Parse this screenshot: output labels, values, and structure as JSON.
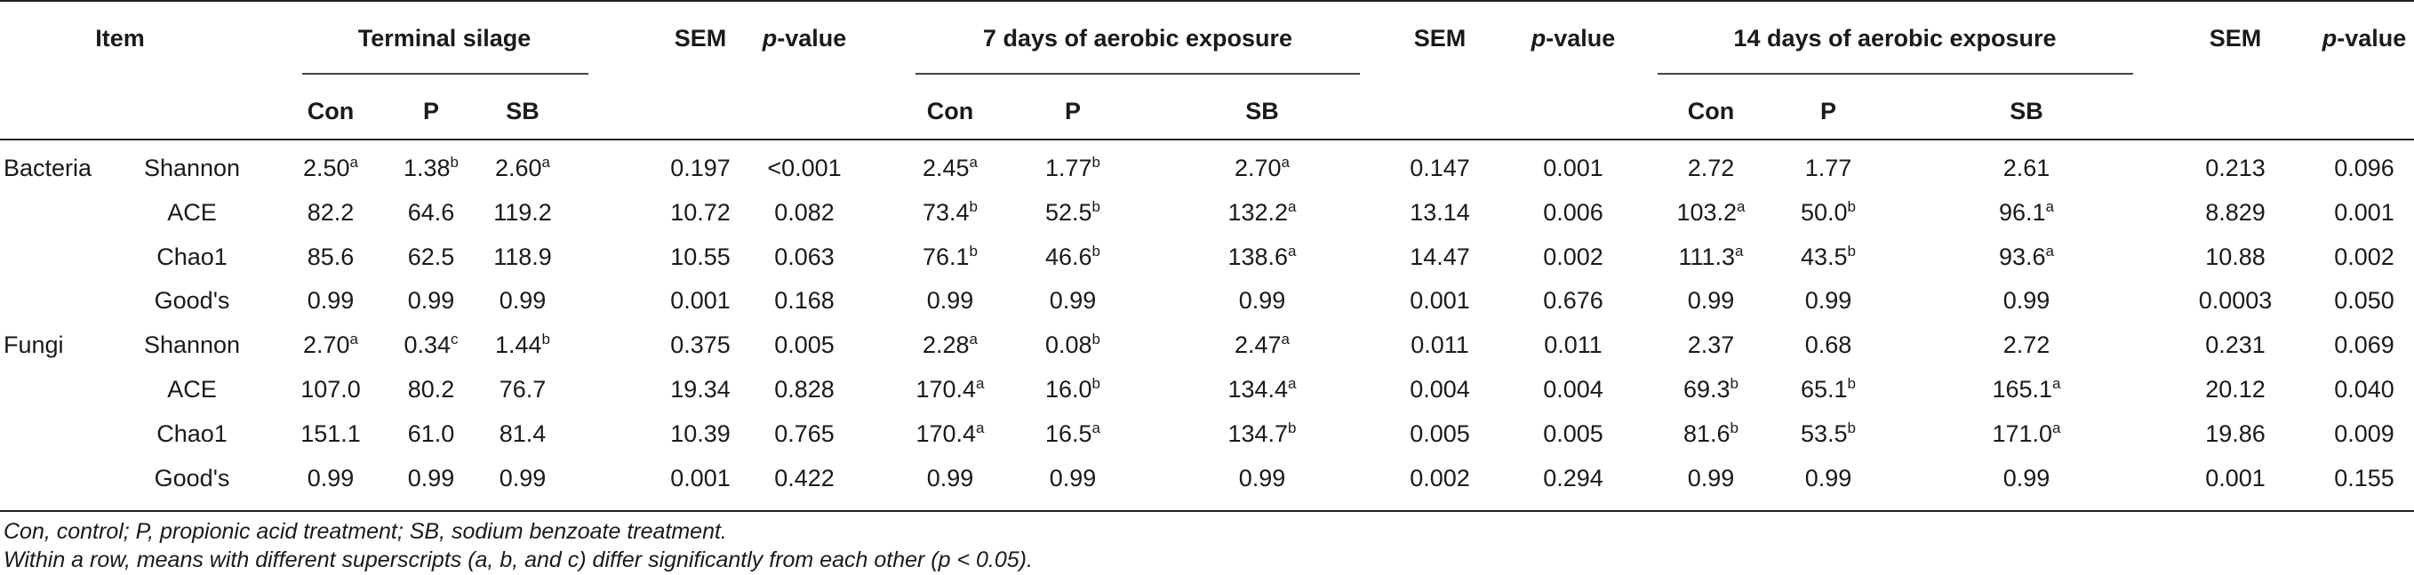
{
  "header": {
    "item": "Item",
    "group1": "Terminal silage",
    "group2": "7 days of aerobic exposure",
    "group3": "14 days of aerobic exposure",
    "sem": "SEM",
    "p_italic": "p",
    "p_rest": "-value",
    "sub_con": "Con",
    "sub_p": "P",
    "sub_sb": "SB"
  },
  "rows": [
    {
      "group": "Bacteria",
      "metric": "Shannon",
      "cells": [
        [
          "2.50",
          "a"
        ],
        [
          "1.38",
          "b"
        ],
        [
          "2.60",
          "a"
        ],
        [
          "0.197",
          ""
        ],
        [
          "<0.001",
          ""
        ],
        [
          "2.45",
          "a"
        ],
        [
          "1.77",
          "b"
        ],
        [
          "2.70",
          "a"
        ],
        [
          "0.147",
          ""
        ],
        [
          "0.001",
          ""
        ],
        [
          "2.72",
          ""
        ],
        [
          "1.77",
          ""
        ],
        [
          "2.61",
          ""
        ],
        [
          "0.213",
          ""
        ],
        [
          "0.096",
          ""
        ]
      ]
    },
    {
      "group": "",
      "metric": "ACE",
      "cells": [
        [
          "82.2",
          ""
        ],
        [
          "64.6",
          ""
        ],
        [
          "119.2",
          ""
        ],
        [
          "10.72",
          ""
        ],
        [
          "0.082",
          ""
        ],
        [
          "73.4",
          "b"
        ],
        [
          "52.5",
          "b"
        ],
        [
          "132.2",
          "a"
        ],
        [
          "13.14",
          ""
        ],
        [
          "0.006",
          ""
        ],
        [
          "103.2",
          "a"
        ],
        [
          "50.0",
          "b"
        ],
        [
          "96.1",
          "a"
        ],
        [
          "8.829",
          ""
        ],
        [
          "0.001",
          ""
        ]
      ]
    },
    {
      "group": "",
      "metric": "Chao1",
      "cells": [
        [
          "85.6",
          ""
        ],
        [
          "62.5",
          ""
        ],
        [
          "118.9",
          ""
        ],
        [
          "10.55",
          ""
        ],
        [
          "0.063",
          ""
        ],
        [
          "76.1",
          "b"
        ],
        [
          "46.6",
          "b"
        ],
        [
          "138.6",
          "a"
        ],
        [
          "14.47",
          ""
        ],
        [
          "0.002",
          ""
        ],
        [
          "111.3",
          "a"
        ],
        [
          "43.5",
          "b"
        ],
        [
          "93.6",
          "a"
        ],
        [
          "10.88",
          ""
        ],
        [
          "0.002",
          ""
        ]
      ]
    },
    {
      "group": "",
      "metric": "Good's",
      "cells": [
        [
          "0.99",
          ""
        ],
        [
          "0.99",
          ""
        ],
        [
          "0.99",
          ""
        ],
        [
          "0.001",
          ""
        ],
        [
          "0.168",
          ""
        ],
        [
          "0.99",
          ""
        ],
        [
          "0.99",
          ""
        ],
        [
          "0.99",
          ""
        ],
        [
          "0.001",
          ""
        ],
        [
          "0.676",
          ""
        ],
        [
          "0.99",
          ""
        ],
        [
          "0.99",
          ""
        ],
        [
          "0.99",
          ""
        ],
        [
          "0.0003",
          ""
        ],
        [
          "0.050",
          ""
        ]
      ]
    },
    {
      "group": "Fungi",
      "metric": "Shannon",
      "cells": [
        [
          "2.70",
          "a"
        ],
        [
          "0.34",
          "c"
        ],
        [
          "1.44",
          "b"
        ],
        [
          "0.375",
          ""
        ],
        [
          "0.005",
          ""
        ],
        [
          "2.28",
          "a"
        ],
        [
          "0.08",
          "b"
        ],
        [
          "2.47",
          "a"
        ],
        [
          "0.011",
          ""
        ],
        [
          "0.011",
          ""
        ],
        [
          "2.37",
          ""
        ],
        [
          "0.68",
          ""
        ],
        [
          "2.72",
          ""
        ],
        [
          "0.231",
          ""
        ],
        [
          "0.069",
          ""
        ]
      ]
    },
    {
      "group": "",
      "metric": "ACE",
      "cells": [
        [
          "107.0",
          ""
        ],
        [
          "80.2",
          ""
        ],
        [
          "76.7",
          ""
        ],
        [
          "19.34",
          ""
        ],
        [
          "0.828",
          ""
        ],
        [
          "170.4",
          "a"
        ],
        [
          "16.0",
          "b"
        ],
        [
          "134.4",
          "a"
        ],
        [
          "0.004",
          ""
        ],
        [
          "0.004",
          ""
        ],
        [
          "69.3",
          "b"
        ],
        [
          "65.1",
          "b"
        ],
        [
          "165.1",
          "a"
        ],
        [
          "20.12",
          ""
        ],
        [
          "0.040",
          ""
        ]
      ]
    },
    {
      "group": "",
      "metric": "Chao1",
      "cells": [
        [
          "151.1",
          ""
        ],
        [
          "61.0",
          ""
        ],
        [
          "81.4",
          ""
        ],
        [
          "10.39",
          ""
        ],
        [
          "0.765",
          ""
        ],
        [
          "170.4",
          "a"
        ],
        [
          "16.5",
          "a"
        ],
        [
          "134.7",
          "b"
        ],
        [
          "0.005",
          ""
        ],
        [
          "0.005",
          ""
        ],
        [
          "81.6",
          "b"
        ],
        [
          "53.5",
          "b"
        ],
        [
          "171.0",
          "a"
        ],
        [
          "19.86",
          ""
        ],
        [
          "0.009",
          ""
        ]
      ]
    },
    {
      "group": "",
      "metric": "Good's",
      "cells": [
        [
          "0.99",
          ""
        ],
        [
          "0.99",
          ""
        ],
        [
          "0.99",
          ""
        ],
        [
          "0.001",
          ""
        ],
        [
          "0.422",
          ""
        ],
        [
          "0.99",
          ""
        ],
        [
          "0.99",
          ""
        ],
        [
          "0.99",
          ""
        ],
        [
          "0.002",
          ""
        ],
        [
          "0.294",
          ""
        ],
        [
          "0.99",
          ""
        ],
        [
          "0.99",
          ""
        ],
        [
          "0.99",
          ""
        ],
        [
          "0.001",
          ""
        ],
        [
          "0.155",
          ""
        ]
      ]
    }
  ],
  "footnotes": [
    "Con, control; P, propionic acid treatment; SB, sodium benzoate treatment.",
    "Within a row, means with different superscripts (a, b, and c) differ significantly from each other (p < 0.05)."
  ]
}
